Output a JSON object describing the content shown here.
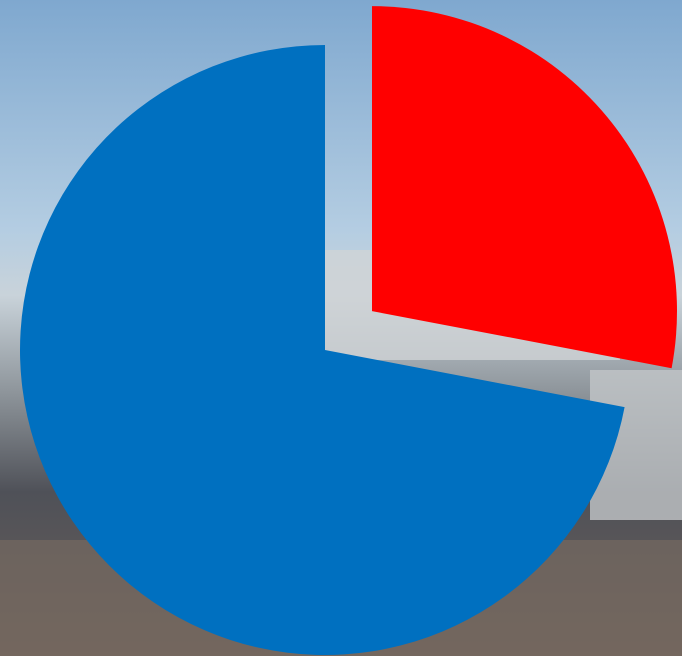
{
  "chart_data": {
    "type": "pie",
    "values": [
      28,
      72
    ],
    "colors": [
      "#ff0000",
      "#0070c0"
    ],
    "exploded": [
      true,
      false
    ]
  }
}
